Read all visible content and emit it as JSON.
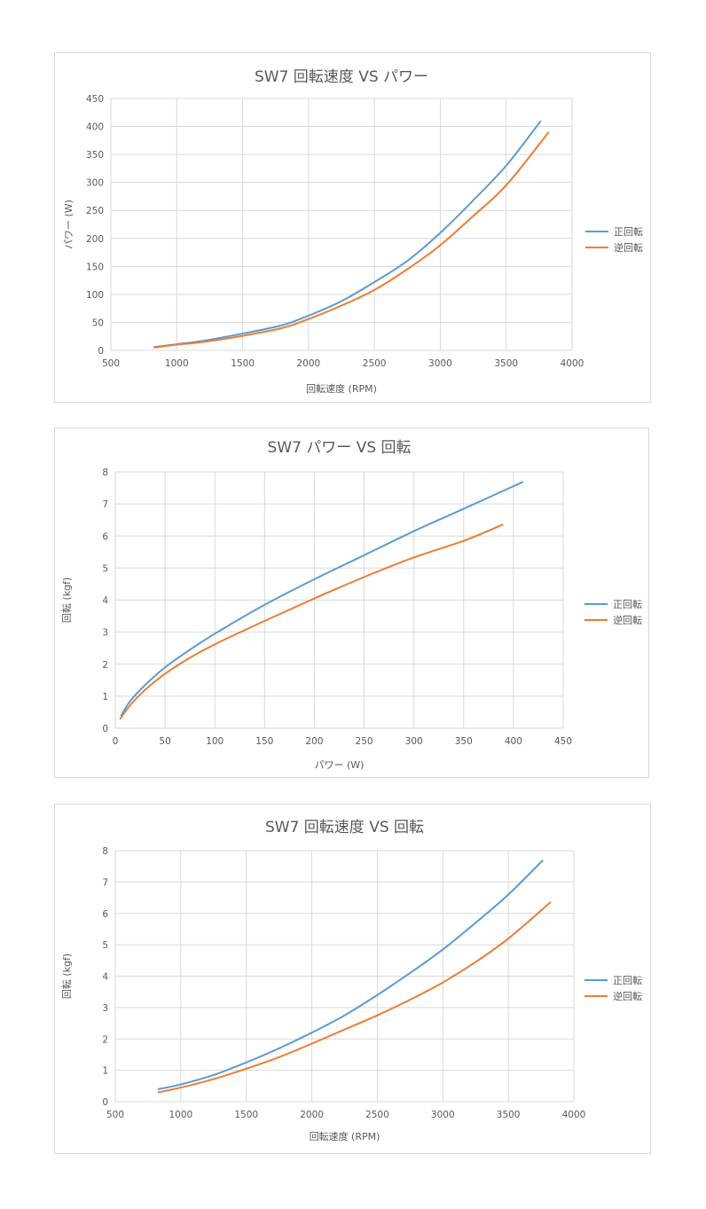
{
  "chart_data": [
    {
      "type": "line",
      "title": "SW7 回転速度 VS パワー",
      "xlabel": "回転速度 (RPM)",
      "ylabel": "パワー (W)",
      "xlim": [
        500,
        4000
      ],
      "ylim": [
        0,
        450
      ],
      "x_ticks": [
        "500",
        "1000",
        "1500",
        "2000",
        "2500",
        "3000",
        "3500",
        "4000"
      ],
      "y_ticks": [
        "0",
        "50",
        "100",
        "150",
        "200",
        "250",
        "300",
        "350",
        "400",
        "450"
      ],
      "grid": true,
      "legend_position": "right",
      "series": [
        {
          "name": "正回転",
          "color": "#5b9bd5",
          "points": [
            [
              830,
              6
            ],
            [
              1000,
              11
            ],
            [
              1200,
              17
            ],
            [
              1500,
              30
            ],
            [
              1800,
              45
            ],
            [
              2000,
              62
            ],
            [
              2250,
              88
            ],
            [
              2500,
              122
            ],
            [
              2750,
              160
            ],
            [
              3000,
              210
            ],
            [
              3250,
              268
            ],
            [
              3500,
              330
            ],
            [
              3760,
              409
            ]
          ]
        },
        {
          "name": "逆回転",
          "color": "#ed7d31",
          "points": [
            [
              830,
              5
            ],
            [
              1000,
              10
            ],
            [
              1200,
              15
            ],
            [
              1500,
              26
            ],
            [
              1800,
              40
            ],
            [
              2000,
              56
            ],
            [
              2250,
              80
            ],
            [
              2500,
              108
            ],
            [
              2750,
              145
            ],
            [
              3000,
              188
            ],
            [
              3250,
              240
            ],
            [
              3500,
              295
            ],
            [
              3820,
              389
            ]
          ]
        }
      ]
    },
    {
      "type": "line",
      "title": "SW7 パワー VS 回転",
      "xlabel": "パワー (W)",
      "ylabel": "回転 (kgf)",
      "xlim": [
        0,
        450
      ],
      "ylim": [
        0,
        8
      ],
      "x_ticks": [
        "0",
        "50",
        "100",
        "150",
        "200",
        "250",
        "300",
        "350",
        "400",
        "450"
      ],
      "y_ticks": [
        "0",
        "1",
        "2",
        "3",
        "4",
        "5",
        "6",
        "7",
        "8"
      ],
      "grid": true,
      "legend_position": "right",
      "series": [
        {
          "name": "正回転",
          "color": "#5b9bd5",
          "points": [
            [
              6,
              0.4
            ],
            [
              15,
              0.85
            ],
            [
              30,
              1.35
            ],
            [
              50,
              1.9
            ],
            [
              75,
              2.45
            ],
            [
              100,
              2.95
            ],
            [
              150,
              3.85
            ],
            [
              200,
              4.65
            ],
            [
              250,
              5.4
            ],
            [
              300,
              6.15
            ],
            [
              350,
              6.85
            ],
            [
              409,
              7.68
            ]
          ]
        },
        {
          "name": "逆回転",
          "color": "#ed7d31",
          "points": [
            [
              5,
              0.3
            ],
            [
              15,
              0.72
            ],
            [
              30,
              1.2
            ],
            [
              50,
              1.7
            ],
            [
              75,
              2.2
            ],
            [
              100,
              2.62
            ],
            [
              150,
              3.35
            ],
            [
              200,
              4.05
            ],
            [
              250,
              4.72
            ],
            [
              300,
              5.33
            ],
            [
              350,
              5.85
            ],
            [
              389,
              6.35
            ]
          ]
        }
      ]
    },
    {
      "type": "line",
      "title": "SW7 回転速度 VS 回転",
      "xlabel": "回転速度 (RPM)",
      "ylabel": "回転 (kgf)",
      "xlim": [
        500,
        4000
      ],
      "ylim": [
        0,
        8
      ],
      "x_ticks": [
        "500",
        "1000",
        "1500",
        "2000",
        "2500",
        "3000",
        "3500",
        "4000"
      ],
      "y_ticks": [
        "0",
        "1",
        "2",
        "3",
        "4",
        "5",
        "6",
        "7",
        "8"
      ],
      "grid": true,
      "legend_position": "right",
      "series": [
        {
          "name": "正回転",
          "color": "#5b9bd5",
          "points": [
            [
              830,
              0.4
            ],
            [
              1000,
              0.55
            ],
            [
              1250,
              0.85
            ],
            [
              1500,
              1.25
            ],
            [
              1750,
              1.7
            ],
            [
              2000,
              2.2
            ],
            [
              2250,
              2.75
            ],
            [
              2500,
              3.4
            ],
            [
              2750,
              4.1
            ],
            [
              3000,
              4.85
            ],
            [
              3250,
              5.7
            ],
            [
              3500,
              6.6
            ],
            [
              3760,
              7.68
            ]
          ]
        },
        {
          "name": "逆回転",
          "color": "#ed7d31",
          "points": [
            [
              830,
              0.3
            ],
            [
              1000,
              0.45
            ],
            [
              1250,
              0.72
            ],
            [
              1500,
              1.05
            ],
            [
              1750,
              1.42
            ],
            [
              2000,
              1.85
            ],
            [
              2250,
              2.3
            ],
            [
              2500,
              2.75
            ],
            [
              2750,
              3.25
            ],
            [
              3000,
              3.8
            ],
            [
              3250,
              4.45
            ],
            [
              3500,
              5.2
            ],
            [
              3820,
              6.35
            ]
          ]
        }
      ]
    }
  ]
}
